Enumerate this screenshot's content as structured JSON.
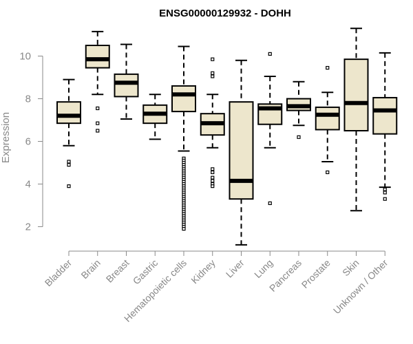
{
  "chart_data": {
    "type": "box",
    "title": "ENSG00000129932 - DOHH",
    "xlabel": "",
    "ylabel": "Expression",
    "ylim": [
      1.0,
      11.5
    ],
    "yticks": [
      2,
      4,
      6,
      8,
      10
    ],
    "box_fill": "#ede6cc",
    "categories": [
      "Bladder",
      "Brain",
      "Breast",
      "Gastric",
      "Hematopoietic cells",
      "Kidney",
      "Liver",
      "Lung",
      "Pancreas",
      "Prostate",
      "Skin",
      "Unknown / Other"
    ],
    "boxes": [
      {
        "name": "Bladder",
        "whisker_low": 5.8,
        "q1": 6.85,
        "median": 7.2,
        "q3": 7.85,
        "whisker_high": 8.9,
        "outliers": [
          5.05,
          4.9,
          3.9
        ]
      },
      {
        "name": "Brain",
        "whisker_low": 8.2,
        "q1": 9.45,
        "median": 9.85,
        "q3": 10.5,
        "whisker_high": 11.15,
        "outliers": [
          7.55,
          6.85,
          6.5
        ]
      },
      {
        "name": "Breast",
        "whisker_low": 7.05,
        "q1": 8.1,
        "median": 8.75,
        "q3": 9.15,
        "whisker_high": 10.55,
        "outliers": []
      },
      {
        "name": "Gastric",
        "whisker_low": 6.1,
        "q1": 6.85,
        "median": 7.3,
        "q3": 7.7,
        "whisker_high": 8.2,
        "outliers": []
      },
      {
        "name": "Hematopoietic cells",
        "whisker_low": 5.55,
        "q1": 7.4,
        "median": 8.2,
        "q3": 8.6,
        "whisker_high": 10.45,
        "outliers": [
          5.2,
          5.1,
          5.0,
          4.9,
          4.8,
          4.7,
          4.6,
          4.5,
          4.4,
          4.3,
          4.2,
          4.1,
          4.0,
          3.9,
          3.8,
          3.7,
          3.6,
          3.5,
          3.4,
          3.3,
          3.2,
          3.1,
          3.0,
          2.9,
          2.8,
          2.7,
          2.6,
          2.5,
          2.4,
          2.3,
          2.2,
          2.1,
          2.0,
          1.9
        ]
      },
      {
        "name": "Kidney",
        "whisker_low": 5.7,
        "q1": 6.3,
        "median": 6.85,
        "q3": 7.3,
        "whisker_high": 8.2,
        "outliers": [
          9.85,
          9.2,
          9.05,
          4.7,
          4.55,
          4.3,
          4.15,
          4.0,
          3.9
        ]
      },
      {
        "name": "Liver",
        "whisker_low": 1.15,
        "q1": 3.3,
        "median": 4.15,
        "q3": 7.85,
        "whisker_high": 9.8,
        "outliers": []
      },
      {
        "name": "Lung",
        "whisker_low": 5.7,
        "q1": 6.8,
        "median": 7.55,
        "q3": 7.75,
        "whisker_high": 9.05,
        "outliers": [
          10.1,
          3.1
        ]
      },
      {
        "name": "Pancreas",
        "whisker_low": 6.75,
        "q1": 7.45,
        "median": 7.65,
        "q3": 8.0,
        "whisker_high": 8.8,
        "outliers": [
          6.2
        ]
      },
      {
        "name": "Prostate",
        "whisker_low": 5.05,
        "q1": 6.55,
        "median": 7.25,
        "q3": 7.6,
        "whisker_high": 8.3,
        "outliers": [
          9.45,
          4.55
        ]
      },
      {
        "name": "Skin",
        "whisker_low": 2.75,
        "q1": 6.5,
        "median": 7.8,
        "q3": 9.85,
        "whisker_high": 11.3,
        "outliers": []
      },
      {
        "name": "Unknown / Other",
        "whisker_low": 3.85,
        "q1": 6.35,
        "median": 7.45,
        "q3": 8.05,
        "whisker_high": 10.15,
        "outliers": [
          3.75,
          3.6,
          3.3
        ]
      }
    ]
  }
}
